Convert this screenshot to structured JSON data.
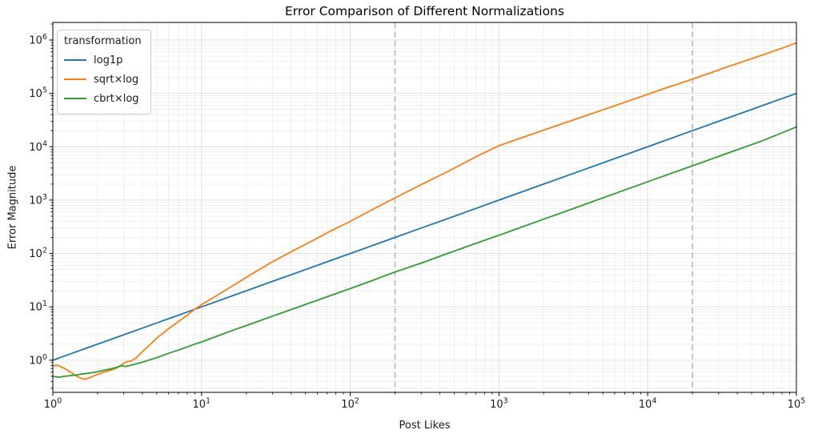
{
  "chart_data": {
    "type": "line",
    "title": "Error Comparison of Different Normalizations",
    "xlabel": "Post Likes",
    "ylabel": "Error Magnitude",
    "xscale": "log",
    "yscale": "log",
    "xlim": [
      1,
      100000
    ],
    "ylim": [
      0.25,
      2140000
    ],
    "x_tick_exponents": [
      0,
      1,
      2,
      3,
      4,
      5
    ],
    "y_tick_exponents": [
      0,
      1,
      2,
      3,
      4,
      5,
      6
    ],
    "grid": "major-and-minor",
    "legend": {
      "title": "transformation",
      "position": "upper-left"
    },
    "reference_lines_x": [
      200,
      20000
    ],
    "reference_line_style": "gray-dashed",
    "x": [
      1,
      1.05,
      1.1,
      1.15,
      1.2,
      1.28,
      1.35,
      1.45,
      1.55,
      1.65,
      1.8,
      1.95,
      2.1,
      2.3,
      2.5,
      2.7,
      2.9,
      3.1,
      3.35,
      3.6,
      4,
      4.5,
      5,
      6,
      7,
      8,
      9,
      10,
      13,
      17,
      22,
      30,
      40,
      55,
      75,
      100,
      140,
      200,
      300,
      450,
      700,
      1000,
      2000,
      3500,
      7000,
      12000,
      20000,
      35000,
      60000,
      100000
    ],
    "series": [
      {
        "name": "log1p",
        "color": "#1f77b4",
        "values": [
          1,
          1.05,
          1.1,
          1.15,
          1.2,
          1.28,
          1.35,
          1.45,
          1.55,
          1.65,
          1.8,
          1.95,
          2.1,
          2.3,
          2.5,
          2.7,
          2.9,
          3.1,
          3.35,
          3.6,
          4,
          4.5,
          5,
          6,
          7,
          8,
          9,
          10,
          13,
          17,
          22,
          30,
          40,
          55,
          75,
          100,
          140,
          200,
          300,
          450,
          700,
          1000,
          2000,
          3500,
          7000,
          12000,
          20000,
          35000,
          60000,
          100000
        ]
      },
      {
        "name": "sqrt×log",
        "color": "#ff7f0e",
        "values": [
          0.78,
          0.81,
          0.79,
          0.74,
          0.7,
          0.63,
          0.57,
          0.5,
          0.46,
          0.44,
          0.48,
          0.53,
          0.57,
          0.62,
          0.66,
          0.72,
          0.82,
          0.93,
          0.97,
          1.08,
          1.45,
          1.95,
          2.6,
          3.9,
          5.3,
          7.0,
          9.0,
          11,
          17,
          27,
          42,
          70,
          108,
          170,
          270,
          400,
          660,
          1100,
          1950,
          3400,
          6500,
          10500,
          20500,
          35000,
          68000,
          115000,
          185000,
          320000,
          530000,
          880000
        ]
      },
      {
        "name": "cbrt×log",
        "color": "#2ca02c",
        "values": [
          0.5,
          0.49,
          0.48,
          0.49,
          0.5,
          0.51,
          0.52,
          0.53,
          0.55,
          0.56,
          0.58,
          0.6,
          0.63,
          0.66,
          0.7,
          0.74,
          0.79,
          0.76,
          0.81,
          0.85,
          0.92,
          1.02,
          1.12,
          1.35,
          1.55,
          1.78,
          2.0,
          2.2,
          2.9,
          3.8,
          4.9,
          6.7,
          8.9,
          12.2,
          16.6,
          22,
          31,
          45,
          66,
          100,
          155,
          220,
          440,
          770,
          1550,
          2650,
          4400,
          7700,
          13200,
          23500
        ]
      }
    ]
  },
  "style": {
    "grid_major_color": "#dcdcdc",
    "grid_minor_color": "#ededed",
    "reference_line_color": "#b8b8b8",
    "spine_color": "#000000",
    "text_color": "#1a1a1a"
  }
}
